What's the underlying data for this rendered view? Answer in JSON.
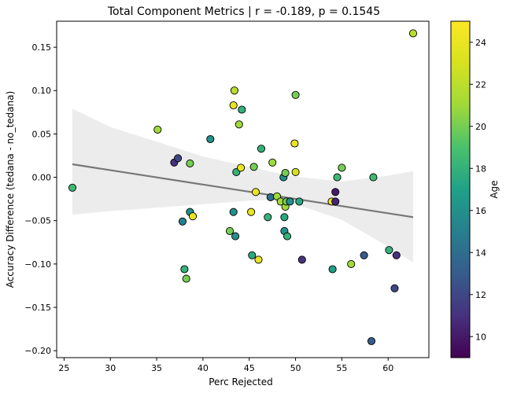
{
  "chart_data": {
    "type": "scatter",
    "title": "Total Component Metrics | r = -0.189, p = 0.1545",
    "xlabel": "Perc Rejected",
    "ylabel": "Accuracy Difference (tedana - no_tedana)",
    "xlim": [
      24.2,
      64.4
    ],
    "ylim": [
      -0.208,
      0.18
    ],
    "xticks": [
      25,
      30,
      35,
      40,
      45,
      50,
      55,
      60
    ],
    "yticks": [
      -0.2,
      -0.15,
      -0.1,
      -0.05,
      0.0,
      0.05,
      0.1,
      0.15
    ],
    "xtick_labels": [
      "25",
      "30",
      "35",
      "40",
      "45",
      "50",
      "55",
      "60"
    ],
    "ytick_labels": [
      "−0.20",
      "−0.15",
      "−0.10",
      "−0.05",
      "0.00",
      "0.05",
      "0.10",
      "0.15"
    ],
    "grid": false,
    "regression": {
      "x": [
        25.9,
        62.7
      ],
      "y": [
        0.015,
        -0.046
      ],
      "ci_x": [
        25.9,
        30,
        35,
        40,
        45,
        47.5,
        50,
        55,
        60,
        62.7
      ],
      "ci_upper": [
        0.079,
        0.058,
        0.041,
        0.024,
        0.012,
        0.006,
        0.001,
        -0.005,
        0.002,
        0.007
      ],
      "ci_lower": [
        -0.043,
        -0.039,
        -0.035,
        -0.031,
        -0.027,
        -0.026,
        -0.031,
        -0.049,
        -0.08,
        -0.098
      ]
    },
    "colorbar": {
      "label": "Age",
      "min": 9,
      "max": 25,
      "ticks": [
        10,
        12,
        14,
        16,
        18,
        20,
        22,
        24
      ],
      "tick_labels": [
        "10",
        "12",
        "14",
        "16",
        "18",
        "20",
        "22",
        "24"
      ],
      "colormap": "viridis"
    },
    "points": [
      {
        "x": 25.9,
        "y": -0.012,
        "age": 18.5
      },
      {
        "x": 35.1,
        "y": 0.055,
        "age": 21
      },
      {
        "x": 36.9,
        "y": 0.017,
        "age": 11
      },
      {
        "x": 37.3,
        "y": 0.022,
        "age": 12
      },
      {
        "x": 37.8,
        "y": -0.051,
        "age": 15
      },
      {
        "x": 38.0,
        "y": -0.106,
        "age": 18
      },
      {
        "x": 38.2,
        "y": -0.117,
        "age": 20
      },
      {
        "x": 38.6,
        "y": 0.016,
        "age": 20
      },
      {
        "x": 38.6,
        "y": -0.04,
        "age": 16
      },
      {
        "x": 38.9,
        "y": -0.045,
        "age": 24
      },
      {
        "x": 40.8,
        "y": 0.044,
        "age": 16
      },
      {
        "x": 42.9,
        "y": -0.062,
        "age": 20
      },
      {
        "x": 43.3,
        "y": -0.04,
        "age": 16
      },
      {
        "x": 43.3,
        "y": 0.083,
        "age": 24
      },
      {
        "x": 43.4,
        "y": 0.1,
        "age": 22
      },
      {
        "x": 43.5,
        "y": -0.068,
        "age": 16
      },
      {
        "x": 43.6,
        "y": 0.006,
        "age": 18
      },
      {
        "x": 43.9,
        "y": 0.061,
        "age": 21
      },
      {
        "x": 44.2,
        "y": 0.078,
        "age": 18
      },
      {
        "x": 44.1,
        "y": 0.011,
        "age": 24
      },
      {
        "x": 45.2,
        "y": -0.04,
        "age": 24
      },
      {
        "x": 45.3,
        "y": -0.09,
        "age": 17.5
      },
      {
        "x": 45.5,
        "y": 0.012,
        "age": 20
      },
      {
        "x": 45.7,
        "y": -0.017,
        "age": 24
      },
      {
        "x": 46.0,
        "y": -0.095,
        "age": 24
      },
      {
        "x": 46.3,
        "y": 0.033,
        "age": 18
      },
      {
        "x": 47.0,
        "y": -0.046,
        "age": 18
      },
      {
        "x": 47.3,
        "y": -0.023,
        "age": 14
      },
      {
        "x": 47.5,
        "y": 0.017,
        "age": 21
      },
      {
        "x": 48.0,
        "y": -0.022,
        "age": 21
      },
      {
        "x": 48.4,
        "y": -0.028,
        "age": 21
      },
      {
        "x": 48.7,
        "y": 0.0,
        "age": 16
      },
      {
        "x": 48.8,
        "y": -0.062,
        "age": 16
      },
      {
        "x": 48.8,
        "y": -0.046,
        "age": 17.5
      },
      {
        "x": 48.9,
        "y": -0.034,
        "age": 21
      },
      {
        "x": 48.9,
        "y": 0.005,
        "age": 20
      },
      {
        "x": 49.0,
        "y": -0.028,
        "age": 20
      },
      {
        "x": 49.1,
        "y": -0.068,
        "age": 18
      },
      {
        "x": 49.4,
        "y": -0.028,
        "age": 16
      },
      {
        "x": 49.9,
        "y": 0.039,
        "age": 24
      },
      {
        "x": 50.0,
        "y": 0.095,
        "age": 20
      },
      {
        "x": 50.0,
        "y": 0.006,
        "age": 23
      },
      {
        "x": 50.4,
        "y": -0.028,
        "age": 17.5
      },
      {
        "x": 50.7,
        "y": -0.095,
        "age": 11
      },
      {
        "x": 53.9,
        "y": -0.028,
        "age": 24
      },
      {
        "x": 54.0,
        "y": -0.106,
        "age": 17
      },
      {
        "x": 54.3,
        "y": -0.017,
        "age": 10
      },
      {
        "x": 54.3,
        "y": -0.028,
        "age": 10.5
      },
      {
        "x": 54.5,
        "y": -0.0,
        "age": 18.5
      },
      {
        "x": 55.0,
        "y": 0.011,
        "age": 20
      },
      {
        "x": 56.0,
        "y": -0.1,
        "age": 21
      },
      {
        "x": 57.4,
        "y": -0.09,
        "age": 13
      },
      {
        "x": 58.2,
        "y": -0.189,
        "age": 13
      },
      {
        "x": 58.4,
        "y": 0.0,
        "age": 18.5
      },
      {
        "x": 60.1,
        "y": -0.084,
        "age": 18
      },
      {
        "x": 60.7,
        "y": -0.128,
        "age": 12
      },
      {
        "x": 60.9,
        "y": -0.09,
        "age": 11
      },
      {
        "x": 62.7,
        "y": 0.166,
        "age": 22
      }
    ]
  }
}
